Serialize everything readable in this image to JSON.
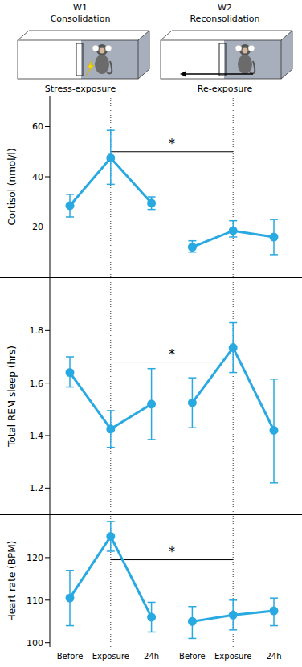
{
  "header": {
    "panels": [
      {
        "week": "W1",
        "phase": "Consolidation",
        "event": "Stress-exposure"
      },
      {
        "week": "W2",
        "phase": "Reconsolidation",
        "event": "Re-exposure"
      }
    ]
  },
  "chart_data": [
    {
      "type": "line",
      "ylabel": "Cortisol (nmol/l)",
      "categories": [
        "Before",
        "Exposure",
        "24h",
        "Before",
        "Exposure",
        "24h"
      ],
      "ylim": [
        0,
        72
      ],
      "yticks": [
        20,
        40,
        60
      ],
      "tick_labels": "y",
      "marker": "circle",
      "series": [
        {
          "color": "#29a9e1",
          "values": [
            28.5,
            47.5,
            29.5,
            null,
            null,
            null
          ],
          "error": [
            [
              4.5,
              4.5
            ],
            [
              10.5,
              11
            ],
            [
              2.5,
              2.5
            ],
            null,
            null,
            null
          ]
        },
        {
          "color": "#29a9e1",
          "values": [
            null,
            null,
            null,
            12,
            18.5,
            16
          ],
          "error": [
            null,
            null,
            null,
            [
              2,
              2.5
            ],
            [
              2.5,
              4
            ],
            [
              7,
              7
            ]
          ]
        }
      ],
      "annotations": [
        {
          "text": "*",
          "x": [
            1,
            4
          ],
          "y": 50
        }
      ]
    },
    {
      "type": "line",
      "ylabel": "Total REM sleep (hrs)",
      "categories": [
        "Before",
        "Exposure",
        "24h",
        "Before",
        "Exposure",
        "24h"
      ],
      "ylim": [
        1.1,
        2.0
      ],
      "yticks": [
        1.2,
        1.4,
        1.6,
        1.8
      ],
      "tick_labels": "y",
      "marker": "circle",
      "series": [
        {
          "color": "#29a9e1",
          "values": [
            1.64,
            1.425,
            1.52,
            null,
            null,
            null
          ],
          "error": [
            [
              0.055,
              0.06
            ],
            [
              0.07,
              0.07
            ],
            [
              0.135,
              0.135
            ],
            null,
            null,
            null
          ]
        },
        {
          "color": "#29a9e1",
          "values": [
            null,
            null,
            null,
            1.525,
            1.735,
            1.42
          ],
          "error": [
            null,
            null,
            null,
            [
              0.095,
              0.095
            ],
            [
              0.095,
              0.095
            ],
            [
              0.2,
              0.195
            ]
          ]
        }
      ],
      "annotations": [
        {
          "text": "*",
          "x": [
            1,
            4
          ],
          "y": 1.68
        }
      ]
    },
    {
      "type": "line",
      "ylabel": "Heart rate (BPM)",
      "categories": [
        "Before",
        "Exposure",
        "24h",
        "Before",
        "Exposure",
        "24h"
      ],
      "ylim": [
        99,
        130
      ],
      "yticks": [
        100,
        110,
        120
      ],
      "tick_labels": true,
      "marker": "circle",
      "series": [
        {
          "color": "#29a9e1",
          "values": [
            110.5,
            125,
            106,
            null,
            null,
            null
          ],
          "error": [
            [
              6.5,
              6.5
            ],
            [
              3.5,
              3.5
            ],
            [
              3.5,
              3.5
            ],
            null,
            null,
            null
          ]
        },
        {
          "color": "#29a9e1",
          "values": [
            null,
            null,
            null,
            105,
            106.5,
            107.5
          ],
          "error": [
            null,
            null,
            null,
            [
              4,
              3.5
            ],
            [
              3.5,
              3.5
            ],
            [
              3.5,
              3
            ]
          ]
        }
      ],
      "annotations": [
        {
          "text": "*",
          "x": [
            1,
            4
          ],
          "y": 119.5
        }
      ]
    }
  ]
}
